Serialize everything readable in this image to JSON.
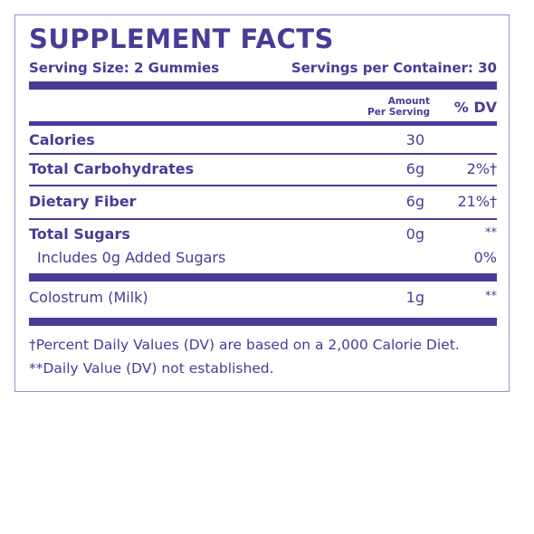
{
  "title": "SUPPLEMENT FACTS",
  "serving_size": "Serving Size: 2 Gummies",
  "servings_per_container": "Servings per Container: 30",
  "header": {
    "amount_line1": "Amount",
    "amount_line2": "Per Serving",
    "dv": "% DV"
  },
  "rows": [
    {
      "label": "Calories",
      "amount": "30",
      "dv": ""
    },
    {
      "label": "Total Carbohydrates",
      "amount": "6g",
      "dv": "2%†"
    },
    {
      "label": "Dietary Fiber",
      "amount": "6g",
      "dv": "21%†"
    },
    {
      "label": "Total Sugars",
      "amount": "0g",
      "dv": "**"
    },
    {
      "label": "Includes 0g Added Sugars",
      "amount": "",
      "dv": "0%"
    },
    {
      "label": "Colostrum (Milk)",
      "amount": "1g",
      "dv": "**"
    }
  ],
  "footnotes": [
    "†Percent Daily Values (DV) are based on a 2,000 Calorie Diet.",
    "**Daily Value (DV) not established."
  ],
  "colors": {
    "accent": "#4a3b96",
    "border": "#9a92c8"
  }
}
